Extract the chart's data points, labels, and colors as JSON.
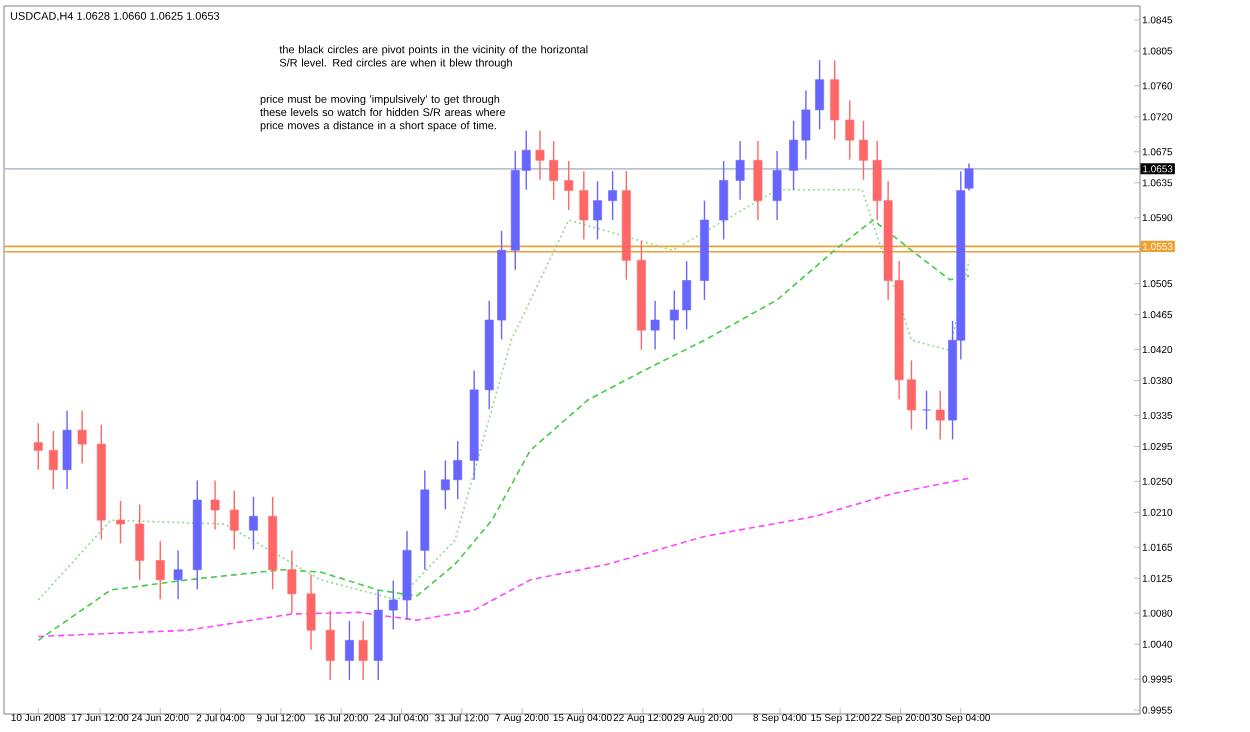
{
  "chart_data": {
    "type": "candlestick",
    "title": "USDCAD,H4  1.0628 1.0660 1.0625 1.0653",
    "annotations": [
      "the black circles are pivot points in the vicinity of the horizontal S/R level.  Red circles are when it blew through",
      "price must be moving 'impulsively' to get through these levels so watch for hidden S/R areas where price moves a distance in a short space of time."
    ],
    "x": [
      "2008-06-10T00:00",
      "2008-06-11T20:00",
      "2008-06-13T12:00",
      "2008-06-15T08:00",
      "2008-06-17T16:00",
      "2008-06-20T00:00",
      "2008-06-22T08:00",
      "2008-06-24T20:00",
      "2008-06-27T00:00",
      "2008-06-29T08:00",
      "2008-07-01T12:00",
      "2008-07-03T20:00",
      "2008-07-06T04:00",
      "2008-07-08T12:00",
      "2008-07-10T20:00",
      "2008-07-13T04:00",
      "2008-07-15T12:00",
      "2008-07-17T20:00",
      "2008-07-19T12:00",
      "2008-07-21T08:00",
      "2008-07-23T04:00",
      "2008-07-24T20:00",
      "2008-07-27T00:00",
      "2008-07-29T12:00",
      "2008-07-31T00:00",
      "2008-08-02T00:00",
      "2008-08-03T20:00",
      "2008-08-05T08:00",
      "2008-08-07T00:00",
      "2008-08-08T08:00",
      "2008-08-10T00:00",
      "2008-08-11T16:00",
      "2008-08-13T12:00",
      "2008-08-15T08:00",
      "2008-08-17T00:00",
      "2008-08-18T20:00",
      "2008-08-20T12:00",
      "2008-08-22T08:00",
      "2008-08-24T00:00",
      "2008-08-26T08:00",
      "2008-08-27T20:00",
      "2008-08-30T00:00",
      "2008-09-01T08:00",
      "2008-09-03T08:00",
      "2008-09-05T12:00",
      "2008-09-07T20:00",
      "2008-09-09T20:00",
      "2008-09-11T08:00",
      "2008-09-13T00:00",
      "2008-09-14T20:00",
      "2008-09-16T16:00",
      "2008-09-18T08:00",
      "2008-09-20T00:00",
      "2008-09-21T08:00",
      "2008-09-22T16:00",
      "2008-09-24T04:00",
      "2008-09-26T00:00",
      "2008-09-27T16:00",
      "2008-09-29T04:00",
      "2008-09-30T04:00",
      "2008-10-01T04:00"
    ],
    "ohlc": [
      [
        1.03,
        1.0325,
        1.0265,
        1.029
      ],
      [
        1.029,
        1.0315,
        1.024,
        1.0265
      ],
      [
        1.0265,
        1.0341,
        1.024,
        1.0316
      ],
      [
        1.0316,
        1.0341,
        1.0273,
        1.0298
      ],
      [
        1.0298,
        1.0323,
        1.0175,
        1.02
      ],
      [
        1.02,
        1.0225,
        1.017,
        1.0195
      ],
      [
        1.0195,
        1.022,
        1.0123,
        1.0148
      ],
      [
        1.0148,
        1.0173,
        1.0098,
        1.0123
      ],
      [
        1.0123,
        1.0161,
        1.0098,
        1.0136
      ],
      [
        1.0136,
        1.0251,
        1.0111,
        1.0226
      ],
      [
        1.0226,
        1.0251,
        1.0188,
        1.0213
      ],
      [
        1.0213,
        1.0238,
        1.0162,
        1.0187
      ],
      [
        1.0187,
        1.023,
        1.0162,
        1.0205
      ],
      [
        1.0205,
        1.023,
        1.0111,
        1.0136
      ],
      [
        1.0136,
        1.0161,
        1.008,
        1.0105
      ],
      [
        1.0105,
        1.013,
        1.0033,
        1.0058
      ],
      [
        1.0058,
        1.0083,
        0.9994,
        1.0019
      ],
      [
        1.0019,
        1.007,
        0.9994,
        1.0045
      ],
      [
        1.0045,
        1.007,
        0.9994,
        1.0019
      ],
      [
        1.0019,
        1.0109,
        0.9994,
        1.0084
      ],
      [
        1.0084,
        1.0122,
        1.0059,
        1.0097
      ],
      [
        1.0097,
        1.0186,
        1.0072,
        1.0161
      ],
      [
        1.0161,
        1.0264,
        1.0136,
        1.0239
      ],
      [
        1.0239,
        1.0277,
        1.0214,
        1.0252
      ],
      [
        1.0252,
        1.0302,
        1.0227,
        1.0277
      ],
      [
        1.0277,
        1.0393,
        1.0252,
        1.0368
      ],
      [
        1.0368,
        1.0483,
        1.0343,
        1.0458
      ],
      [
        1.0458,
        1.0573,
        1.0433,
        1.0548
      ],
      [
        1.0548,
        1.0676,
        1.0523,
        1.0651
      ],
      [
        1.0651,
        1.0702,
        1.0626,
        1.0677
      ],
      [
        1.0677,
        1.0702,
        1.0639,
        1.0664
      ],
      [
        1.0664,
        1.0689,
        1.0613,
        1.0638
      ],
      [
        1.0638,
        1.0663,
        1.06,
        1.0625
      ],
      [
        1.0625,
        1.065,
        1.0562,
        1.0587
      ],
      [
        1.0587,
        1.0637,
        1.0562,
        1.0612
      ],
      [
        1.0612,
        1.065,
        1.0587,
        1.0625
      ],
      [
        1.0625,
        1.065,
        1.051,
        1.0535
      ],
      [
        1.0535,
        1.056,
        1.042,
        1.0445
      ],
      [
        1.0445,
        1.0483,
        1.042,
        1.0458
      ],
      [
        1.0458,
        1.0496,
        1.0433,
        1.0471
      ],
      [
        1.0471,
        1.0534,
        1.0446,
        1.0509
      ],
      [
        1.0509,
        1.0612,
        1.0484,
        1.0587
      ],
      [
        1.0587,
        1.0663,
        1.0562,
        1.0638
      ],
      [
        1.0638,
        1.0689,
        1.0613,
        1.0664
      ],
      [
        1.0664,
        1.0689,
        1.0587,
        1.0612
      ],
      [
        1.0612,
        1.0676,
        1.0587,
        1.0651
      ],
      [
        1.0651,
        1.0715,
        1.0626,
        1.069
      ],
      [
        1.069,
        1.0754,
        1.0665,
        1.0729
      ],
      [
        1.0729,
        1.0793,
        1.0704,
        1.0768
      ],
      [
        1.0768,
        1.0793,
        1.0691,
        1.0716
      ],
      [
        1.0716,
        1.0741,
        1.0665,
        1.069
      ],
      [
        1.069,
        1.0715,
        1.0639,
        1.0664
      ],
      [
        1.0664,
        1.0689,
        1.0587,
        1.0612
      ],
      [
        1.0612,
        1.0637,
        1.0484,
        1.0509
      ],
      [
        1.0509,
        1.0534,
        1.0356,
        1.0381
      ],
      [
        1.0381,
        1.0406,
        1.0317,
        1.0342
      ],
      [
        1.0342,
        1.0367,
        1.0317,
        1.0342
      ],
      [
        1.0342,
        1.0367,
        1.0304,
        1.0329
      ],
      [
        1.0329,
        1.0457,
        1.0304,
        1.0432
      ],
      [
        1.0432,
        1.065,
        1.0407,
        1.0625
      ],
      [
        1.0628,
        1.066,
        1.0625,
        1.0653
      ]
    ],
    "colors": [
      "#ff6666",
      "#ff6666",
      "#6666ff",
      "#ff6666",
      "#ff6666",
      "#ff6666",
      "#ff6666",
      "#ff6666",
      "#6666ff",
      "#6666ff",
      "#ff6666",
      "#ff6666",
      "#6666ff",
      "#ff6666",
      "#ff6666",
      "#ff6666",
      "#ff6666",
      "#6666ff",
      "#ff6666",
      "#6666ff",
      "#6666ff",
      "#6666ff",
      "#6666ff",
      "#6666ff",
      "#6666ff",
      "#6666ff",
      "#6666ff",
      "#6666ff",
      "#6666ff",
      "#6666ff",
      "#ff6666",
      "#ff6666",
      "#ff6666",
      "#ff6666",
      "#6666ff",
      "#6666ff",
      "#ff6666",
      "#ff6666",
      "#6666ff",
      "#6666ff",
      "#6666ff",
      "#6666ff",
      "#6666ff",
      "#6666ff",
      "#ff6666",
      "#6666ff",
      "#6666ff",
      "#6666ff",
      "#6666ff",
      "#ff6666",
      "#ff6666",
      "#ff6666",
      "#ff6666",
      "#ff6666",
      "#ff6666",
      "#ff6666",
      "#6666ff",
      "#ff6666",
      "#6666ff",
      "#6666ff",
      "#6666ff"
    ],
    "series": [
      {
        "type": "line",
        "color": "#ff44ff",
        "line_style": "dashed",
        "x": [
          "2008-06-10T00:00",
          "2008-06-28T04:00",
          "2008-07-10T20:00",
          "2008-07-19T00:00",
          "2008-07-26T00:00",
          "2008-08-02T00:00",
          "2008-08-08T20:00",
          "2008-08-18T04:00",
          "2008-08-30T00:00",
          "2008-09-12T12:00",
          "2008-09-21T20:00",
          "2008-10-01T04:00"
        ],
        "values": [
          1.005,
          1.0058,
          1.0079,
          1.0081,
          1.0071,
          1.0084,
          1.0123,
          1.0143,
          1.0179,
          1.0205,
          1.0234,
          1.0254
        ]
      },
      {
        "type": "line",
        "color": "#44cc44",
        "line_style": "dashed",
        "x": [
          "2008-06-10T00:00",
          "2008-06-18T20:00",
          "2008-06-28T04:00",
          "2008-07-09T16:00",
          "2008-07-14T08:00",
          "2008-07-21T08:00",
          "2008-07-26T00:00",
          "2008-07-30T16:00",
          "2008-08-04T04:00",
          "2008-08-08T20:00",
          "2008-08-15T20:00",
          "2008-08-22T20:00",
          "2008-08-30T00:00",
          "2008-09-07T20:00",
          "2008-09-14T20:00",
          "2008-09-19T12:00",
          "2008-09-24T04:00",
          "2008-09-28T20:00",
          "2008-10-01T04:00"
        ],
        "values": [
          1.0045,
          1.011,
          1.0123,
          1.0136,
          1.0133,
          1.011,
          1.0102,
          1.0143,
          1.02,
          1.029,
          1.0355,
          1.0394,
          1.0432,
          1.0484,
          1.0548,
          1.0587,
          1.0548,
          1.051,
          1.0515
        ]
      },
      {
        "type": "line",
        "color": "#88dd88",
        "line_style": "dotted",
        "x": [
          "2008-06-10T00:00",
          "2008-06-18T20:00",
          "2008-07-02T16:00",
          "2008-07-14T08:00",
          "2008-07-23T16:00",
          "2008-07-30T16:00",
          "2008-08-06T12:00",
          "2008-08-13T12:00",
          "2008-08-26T04:00",
          "2008-09-07T20:00",
          "2008-09-18T04:00",
          "2008-09-24T04:00",
          "2008-09-28T20:00",
          "2008-10-01T04:00"
        ],
        "values": [
          1.0097,
          1.02,
          1.0195,
          1.0123,
          1.0097,
          1.0174,
          1.0432,
          1.0587,
          1.0548,
          1.0626,
          1.0626,
          1.0432,
          1.0419,
          1.0535
        ]
      }
    ],
    "xlim": [
      "2008-06-05T20:00",
      "2008-10-21T23:00"
    ],
    "xticks": [
      {
        "value": "2008-06-10T00:00",
        "label": "10 Jun 2008"
      },
      {
        "value": "2008-06-17T12:00",
        "label": "17 Jun 12:00"
      },
      {
        "value": "2008-06-24T20:00",
        "label": "24 Jun 20:00"
      },
      {
        "value": "2008-07-02T04:00",
        "label": "2 Jul 04:00"
      },
      {
        "value": "2008-07-09T12:00",
        "label": "9 Jul 12:00"
      },
      {
        "value": "2008-07-16T20:00",
        "label": "16 Jul 20:00"
      },
      {
        "value": "2008-07-24T04:00",
        "label": "24 Jul 04:00"
      },
      {
        "value": "2008-07-31T12:00",
        "label": "31 Jul 12:00"
      },
      {
        "value": "2008-08-07T20:00",
        "label": "7 Aug 20:00"
      },
      {
        "value": "2008-08-15T04:00",
        "label": "15 Aug 04:00"
      },
      {
        "value": "2008-08-22T12:00",
        "label": "22 Aug 12:00"
      },
      {
        "value": "2008-08-29T20:00",
        "label": "29 Aug 20:00"
      },
      {
        "value": "2008-09-08T04:00",
        "label": "8 Sep 04:00"
      },
      {
        "value": "2008-09-15T12:00",
        "label": "15 Sep 12:00"
      },
      {
        "value": "2008-09-22T20:00",
        "label": "22 Sep 20:00"
      },
      {
        "value": "2008-09-30T04:00",
        "label": "30 Sep 04:00"
      }
    ],
    "ylim": [
      0.995,
      1.0863
    ],
    "yticks": [
      {
        "value": 1.0845,
        "label": "1.0845"
      },
      {
        "value": 1.0805,
        "label": "1.0805"
      },
      {
        "value": 1.076,
        "label": "1.0760"
      },
      {
        "value": 1.072,
        "label": "1.0720"
      },
      {
        "value": 1.0675,
        "label": "1.0675"
      },
      {
        "value": 1.0635,
        "label": "1.0635"
      },
      {
        "value": 1.059,
        "label": "1.0590"
      },
      {
        "value": 1.0505,
        "label": "1.0505"
      },
      {
        "value": 1.0465,
        "label": "1.0465"
      },
      {
        "value": 1.042,
        "label": "1.0420"
      },
      {
        "value": 1.038,
        "label": "1.0380"
      },
      {
        "value": 1.0335,
        "label": "1.0335"
      },
      {
        "value": 1.0295,
        "label": "1.0295"
      },
      {
        "value": 1.025,
        "label": "1.0250"
      },
      {
        "value": 1.021,
        "label": "1.0210"
      },
      {
        "value": 1.0165,
        "label": "1.0165"
      },
      {
        "value": 1.0125,
        "label": "1.0125"
      },
      {
        "value": 1.008,
        "label": "1.0080"
      },
      {
        "value": 1.004,
        "label": "1.0040"
      },
      {
        "value": 0.9995,
        "label": "0.9995"
      },
      {
        "value": 0.9955,
        "label": "0.9955"
      }
    ],
    "ref_lines": [
      {
        "axis": "y",
        "value": 1.0653,
        "label": "1.0653",
        "color": "#b8c4d4"
      },
      {
        "axis": "y",
        "value": 1.0553,
        "label": "1.0553",
        "color": "#f0a030"
      },
      {
        "axis": "y",
        "value": 1.0546,
        "color": "#f0a030"
      }
    ]
  }
}
